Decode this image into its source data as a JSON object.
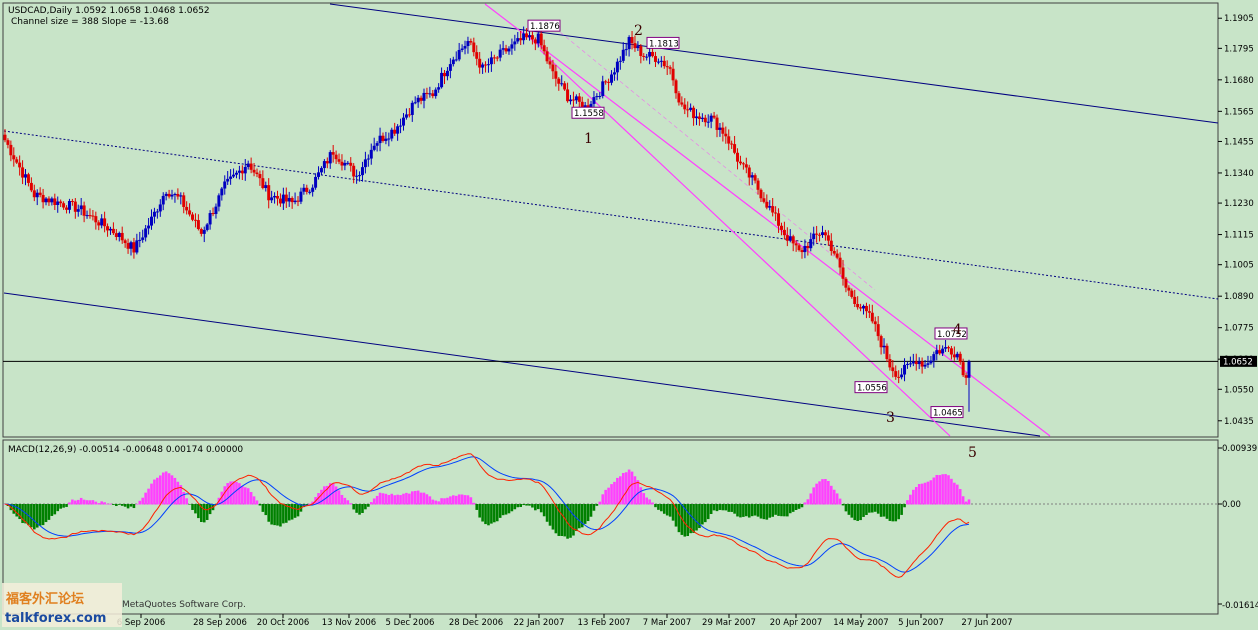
{
  "window": {
    "symbol_line": "USDCAD,Daily  1.0592 1.0658 1.0468 1.0652",
    "channel_line": "Channel size = 388 Slope = -13.68"
  },
  "macd": {
    "header": "MACD(12,26,9) -0.00514 -0.00648 0.00174 0.00000",
    "top_label": "0.00939",
    "zero_label": "0.00",
    "bottom_label": "-0.01614"
  },
  "watermark": {
    "cn": "福客外汇论坛",
    "url": "talkforex.com",
    "copy": "MetaQuotes Software Corp."
  },
  "colors": {
    "background": "#c8e4c8",
    "bull_candle": "#0000c0",
    "bear_candle": "#e00000",
    "channel_blue": "#000080",
    "channel_magenta": "#ff40ff",
    "histogram_positive": "#ff40ff",
    "histogram_negative": "#008000",
    "macd_line": "#0040ff",
    "signal_line": "#ff2000"
  },
  "chart_data": {
    "type": "candlestick",
    "symbol": "USDCAD",
    "timeframe": "Daily",
    "last_quote": {
      "open": 1.0592,
      "high": 1.0658,
      "low": 1.0468,
      "close": 1.0652
    },
    "current_price_label": "1.0652",
    "price_axis": {
      "ylim": [
        1.0405,
        1.1935
      ],
      "ticks": [
        "1.1905",
        "1.1795",
        "1.1680",
        "1.1565",
        "1.1455",
        "1.1340",
        "1.1230",
        "1.1115",
        "1.1005",
        "1.0890",
        "1.0775",
        "1.0660",
        "1.0550",
        "1.0435"
      ]
    },
    "date_axis": {
      "ticks": [
        "6 Sep 2006",
        "28 Sep 2006",
        "20 Oct 2006",
        "13 Nov 2006",
        "5 Dec 2006",
        "28 Dec 2006",
        "22 Jan 2007",
        "13 Feb 2007",
        "7 Mar 2007",
        "29 Mar 2007",
        "20 Apr 2007",
        "14 May 2007",
        "5 Jun 2007",
        "27 Jun 2007"
      ]
    },
    "price_labels": [
      {
        "text": "1.1876",
        "price": 1.1876
      },
      {
        "text": "1.1813",
        "price": 1.1813
      },
      {
        "text": "1.1558",
        "price": 1.1558
      },
      {
        "text": "1.0752",
        "price": 1.0752
      },
      {
        "text": "1.0556",
        "price": 1.0556
      },
      {
        "text": "1.0465",
        "price": 1.0465
      }
    ],
    "wave_labels": [
      "1",
      "2",
      "3",
      "4",
      "5"
    ],
    "anchors": [
      [
        0,
        1.146
      ],
      [
        10,
        1.126
      ],
      [
        25,
        1.121
      ],
      [
        38,
        1.112
      ],
      [
        44,
        1.106
      ],
      [
        50,
        1.117
      ],
      [
        55,
        1.128
      ],
      [
        60,
        1.124
      ],
      [
        67,
        1.112
      ],
      [
        75,
        1.129
      ],
      [
        83,
        1.138
      ],
      [
        90,
        1.126
      ],
      [
        98,
        1.123
      ],
      [
        105,
        1.13
      ],
      [
        112,
        1.142
      ],
      [
        120,
        1.133
      ],
      [
        126,
        1.145
      ],
      [
        133,
        1.15
      ],
      [
        140,
        1.16
      ],
      [
        146,
        1.163
      ],
      [
        152,
        1.175
      ],
      [
        158,
        1.182
      ],
      [
        163,
        1.172
      ],
      [
        170,
        1.178
      ],
      [
        177,
        1.183
      ],
      [
        182,
        1.183
      ],
      [
        187,
        1.17
      ],
      [
        192,
        1.162
      ],
      [
        198,
        1.158
      ],
      [
        203,
        1.164
      ],
      [
        208,
        1.172
      ],
      [
        213,
        1.182
      ],
      [
        218,
        1.177
      ],
      [
        223,
        1.176
      ],
      [
        227,
        1.172
      ],
      [
        231,
        1.158
      ],
      [
        236,
        1.155
      ],
      [
        241,
        1.154
      ],
      [
        246,
        1.148
      ],
      [
        251,
        1.137
      ],
      [
        256,
        1.13
      ],
      [
        261,
        1.121
      ],
      [
        266,
        1.112
      ],
      [
        271,
        1.105
      ],
      [
        276,
        1.11
      ],
      [
        279,
        1.113
      ],
      [
        283,
        1.105
      ],
      [
        287,
        1.092
      ],
      [
        292,
        1.085
      ],
      [
        296,
        1.08
      ],
      [
        299,
        1.072
      ],
      [
        302,
        1.064
      ],
      [
        305,
        1.06
      ],
      [
        308,
        1.063
      ],
      [
        311,
        1.066
      ],
      [
        314,
        1.064
      ],
      [
        318,
        1.069
      ],
      [
        322,
        1.07
      ],
      [
        325,
        1.068
      ],
      [
        328,
        1.0592
      ],
      [
        329,
        1.0652
      ]
    ]
  }
}
